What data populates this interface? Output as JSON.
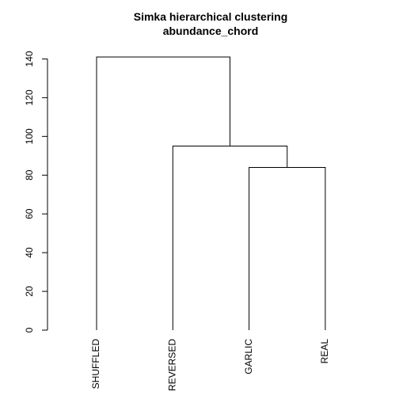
{
  "chart_data": {
    "type": "dendrogram",
    "title": "Simka hierarchical clustering",
    "subtitle": "abundance_chord",
    "xlabel": "",
    "ylabel": "",
    "ylim": [
      0,
      141
    ],
    "yticks": [
      0,
      20,
      40,
      60,
      80,
      100,
      120,
      140
    ],
    "grid": false,
    "leaves": [
      "SHUFFLED",
      "REVERSED",
      "GARLIC",
      "REAL"
    ],
    "merges": [
      {
        "left": "GARLIC",
        "right": "REAL",
        "height": 84
      },
      {
        "left": "REVERSED",
        "right": "cluster-1",
        "height": 95
      },
      {
        "left": "SHUFFLED",
        "right": "cluster-2",
        "height": 141
      }
    ],
    "colors": {
      "line": "#000000",
      "background": "#ffffff"
    }
  }
}
